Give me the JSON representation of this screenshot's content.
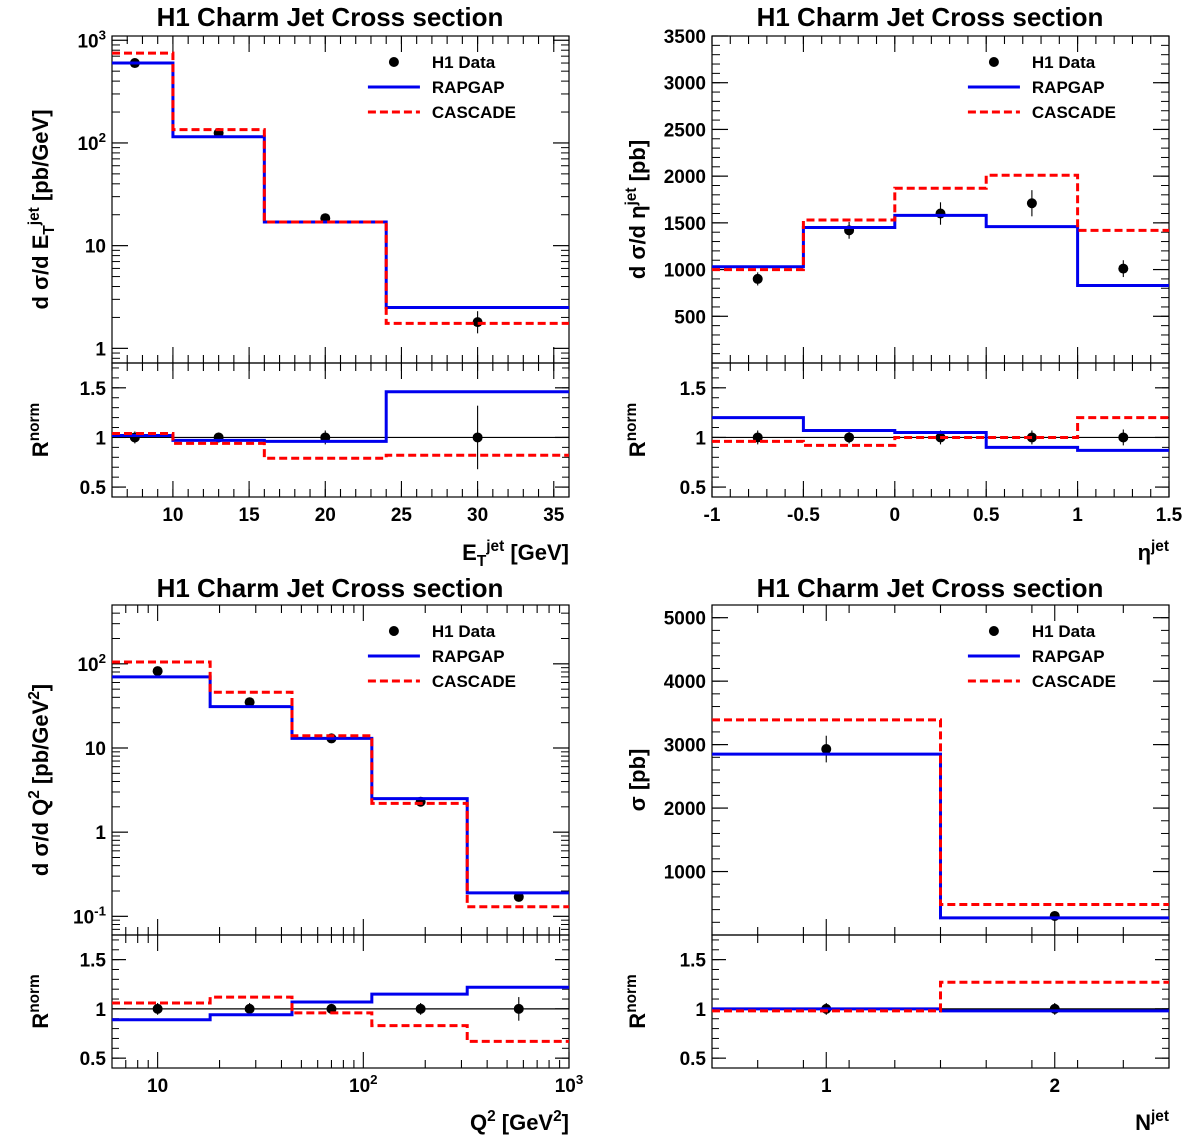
{
  "chart_data": [
    {
      "type": "line",
      "title": "H1 Charm Jet Cross section",
      "ylabel_main": "d σ/d E_T^jet  [pb/GeV]",
      "ylabel_ratio": "R^norm",
      "xlabel": "E_T^jet  [GeV]",
      "x_scale": "linear",
      "y_scale": "log",
      "xlim": [
        6,
        36
      ],
      "ylim": [
        0.72,
        1100
      ],
      "xticks": [
        10,
        15,
        20,
        25,
        30,
        35
      ],
      "yticks": [
        "1",
        "10",
        "10^2",
        "10^3"
      ],
      "ratio_ylim": [
        0.4,
        1.75
      ],
      "ratio_yticks": [
        "0.5",
        "1",
        "1.5"
      ],
      "legend": [
        "H1 Data",
        "RAPGAP",
        "CASCADE"
      ],
      "legend_position": "top-right",
      "bin_edges": [
        6,
        10,
        16,
        24,
        36
      ],
      "series": [
        {
          "name": "H1 Data",
          "style": "points",
          "x": [
            7.5,
            13,
            20,
            30
          ],
          "values": [
            600,
            125,
            18.5,
            1.8
          ],
          "err": [
            [
              560,
              640
            ],
            [
              117,
              133
            ],
            [
              17.5,
              19.6
            ],
            [
              1.4,
              2.3
            ]
          ]
        },
        {
          "name": "RAPGAP",
          "style": "step",
          "color": "#0000ee",
          "values": [
            600,
            115,
            17,
            2.5
          ]
        },
        {
          "name": "CASCADE",
          "style": "step-dashed",
          "color": "#ff0000",
          "values": [
            750,
            135,
            17,
            1.75
          ]
        }
      ],
      "ratio_series": [
        {
          "name": "H1 Data",
          "style": "points",
          "x": [
            7.5,
            13,
            20,
            30
          ],
          "values": [
            1,
            1,
            1,
            1
          ],
          "err": [
            [
              0.94,
              1.06
            ],
            [
              0.95,
              1.05
            ],
            [
              0.93,
              1.07
            ],
            [
              0.68,
              1.32
            ]
          ]
        },
        {
          "name": "RAPGAP",
          "style": "step",
          "color": "#0000ee",
          "values": [
            1.02,
            0.97,
            0.96,
            1.46
          ]
        },
        {
          "name": "CASCADE",
          "style": "step-dashed",
          "color": "#ff0000",
          "values": [
            1.04,
            0.94,
            0.79,
            0.82
          ]
        }
      ]
    },
    {
      "type": "line",
      "title": "H1 Charm Jet Cross section",
      "ylabel_main": "d σ/d η^jet  [pb]",
      "ylabel_ratio": "R^norm",
      "xlabel": "η^jet",
      "x_scale": "linear",
      "y_scale": "linear",
      "xlim": [
        -1,
        1.5
      ],
      "ylim": [
        0,
        3500
      ],
      "xticks": [
        "-1",
        "-0.5",
        "0",
        "0.5",
        "1",
        "1.5"
      ],
      "yticks": [
        500,
        1000,
        1500,
        2000,
        2500,
        3000,
        3500
      ],
      "ratio_ylim": [
        0.4,
        1.75
      ],
      "ratio_yticks": [
        "0.5",
        "1",
        "1.5"
      ],
      "legend": [
        "H1 Data",
        "RAPGAP",
        "CASCADE"
      ],
      "legend_position": "top-right",
      "bin_edges": [
        -1,
        -0.5,
        0,
        0.5,
        1,
        1.5
      ],
      "series": [
        {
          "name": "H1 Data",
          "style": "points",
          "x": [
            -0.75,
            -0.25,
            0.25,
            0.75,
            1.25
          ],
          "values": [
            900,
            1420,
            1600,
            1710,
            1010
          ],
          "err": [
            [
              830,
              970
            ],
            [
              1330,
              1510
            ],
            [
              1480,
              1720
            ],
            [
              1570,
              1850
            ],
            [
              920,
              1100
            ]
          ]
        },
        {
          "name": "RAPGAP",
          "style": "step",
          "color": "#0000ee",
          "values": [
            1030,
            1450,
            1580,
            1460,
            830
          ]
        },
        {
          "name": "CASCADE",
          "style": "step-dashed",
          "color": "#ff0000",
          "values": [
            1000,
            1530,
            1870,
            2010,
            1420
          ]
        }
      ],
      "ratio_series": [
        {
          "name": "H1 Data",
          "style": "points",
          "x": [
            -0.75,
            -0.25,
            0.25,
            0.75,
            1.25
          ],
          "values": [
            1,
            1,
            1,
            1,
            1
          ],
          "err": [
            [
              0.93,
              1.07
            ],
            [
              0.94,
              1.06
            ],
            [
              0.93,
              1.07
            ],
            [
              0.93,
              1.07
            ],
            [
              0.92,
              1.08
            ]
          ]
        },
        {
          "name": "RAPGAP",
          "style": "step",
          "color": "#0000ee",
          "values": [
            1.2,
            1.07,
            1.05,
            0.9,
            0.87
          ]
        },
        {
          "name": "CASCADE",
          "style": "step-dashed",
          "color": "#ff0000",
          "values": [
            0.96,
            0.92,
            1.0,
            1.0,
            1.2
          ]
        }
      ]
    },
    {
      "type": "line",
      "title": "H1 Charm Jet Cross section",
      "ylabel_main": "d σ/d Q^2  [pb/GeV^2]",
      "ylabel_ratio": "R^norm",
      "xlabel": "Q^2  [GeV^2]",
      "x_scale": "log",
      "y_scale": "log",
      "xlim": [
        6,
        1000
      ],
      "ylim": [
        0.06,
        500
      ],
      "xticks": [
        "10",
        "10^2",
        "10^3"
      ],
      "yticks": [
        "10^-1",
        "1",
        "10",
        "10^2"
      ],
      "ratio_ylim": [
        0.4,
        1.75
      ],
      "ratio_yticks": [
        "0.5",
        "1",
        "1.5"
      ],
      "legend": [
        "H1 Data",
        "RAPGAP",
        "CASCADE"
      ],
      "legend_position": "top-right",
      "bin_edges": [
        6,
        18,
        45,
        110,
        320,
        1000
      ],
      "series": [
        {
          "name": "H1 Data",
          "style": "points",
          "x": [
            10,
            28,
            70,
            190,
            570
          ],
          "values": [
            82,
            35,
            13,
            2.3,
            0.17
          ],
          "err": [
            [
              76,
              88
            ],
            [
              32.5,
              37.5
            ],
            [
              12,
              14
            ],
            [
              2.1,
              2.5
            ],
            [
              0.15,
              0.19
            ]
          ]
        },
        {
          "name": "RAPGAP",
          "style": "step",
          "color": "#0000ee",
          "values": [
            70,
            31,
            13,
            2.5,
            0.19
          ]
        },
        {
          "name": "CASCADE",
          "style": "step-dashed",
          "color": "#ff0000",
          "values": [
            105,
            46,
            14,
            2.2,
            0.13
          ]
        }
      ],
      "ratio_series": [
        {
          "name": "H1 Data",
          "style": "points",
          "x": [
            10,
            28,
            70,
            190,
            570
          ],
          "values": [
            1,
            1,
            1,
            1,
            1
          ],
          "err": [
            [
              0.94,
              1.06
            ],
            [
              0.94,
              1.06
            ],
            [
              0.95,
              1.05
            ],
            [
              0.94,
              1.06
            ],
            [
              0.88,
              1.12
            ]
          ]
        },
        {
          "name": "RAPGAP",
          "style": "step",
          "color": "#0000ee",
          "values": [
            0.89,
            0.94,
            1.07,
            1.15,
            1.22
          ]
        },
        {
          "name": "CASCADE",
          "style": "step-dashed",
          "color": "#ff0000",
          "values": [
            1.06,
            1.12,
            0.96,
            0.83,
            0.67
          ]
        }
      ]
    },
    {
      "type": "line",
      "title": "H1 Charm Jet Cross section",
      "ylabel_main": "σ  [pb]",
      "ylabel_ratio": "R^norm",
      "xlabel": "N^jet",
      "x_scale": "linear",
      "y_scale": "linear",
      "xlim": [
        0.5,
        2.5
      ],
      "ylim": [
        0,
        5200
      ],
      "xticks": [
        "1",
        "2"
      ],
      "yticks": [
        1000,
        2000,
        3000,
        4000,
        5000
      ],
      "ratio_ylim": [
        0.4,
        1.75
      ],
      "ratio_yticks": [
        "0.5",
        "1",
        "1.5"
      ],
      "legend": [
        "H1 Data",
        "RAPGAP",
        "CASCADE"
      ],
      "legend_position": "top-right",
      "bin_edges": [
        0.5,
        1.5,
        2.5
      ],
      "series": [
        {
          "name": "H1 Data",
          "style": "points",
          "x": [
            1,
            2
          ],
          "values": [
            2930,
            300
          ],
          "err": [
            [
              2720,
              3140
            ],
            [
              270,
              330
            ]
          ]
        },
        {
          "name": "RAPGAP",
          "style": "step",
          "color": "#0000ee",
          "values": [
            2850,
            270
          ]
        },
        {
          "name": "CASCADE",
          "style": "step-dashed",
          "color": "#ff0000",
          "values": [
            3390,
            480
          ]
        }
      ],
      "ratio_series": [
        {
          "name": "H1 Data",
          "style": "points",
          "x": [
            1,
            2
          ],
          "values": [
            1,
            1
          ],
          "err": [
            [
              0.94,
              1.06
            ],
            [
              0.94,
              1.06
            ]
          ]
        },
        {
          "name": "RAPGAP",
          "style": "step",
          "color": "#0000ee",
          "values": [
            1.0,
            0.98
          ]
        },
        {
          "name": "CASCADE",
          "style": "step-dashed",
          "color": "#ff0000",
          "values": [
            0.98,
            1.27
          ]
        }
      ]
    }
  ]
}
